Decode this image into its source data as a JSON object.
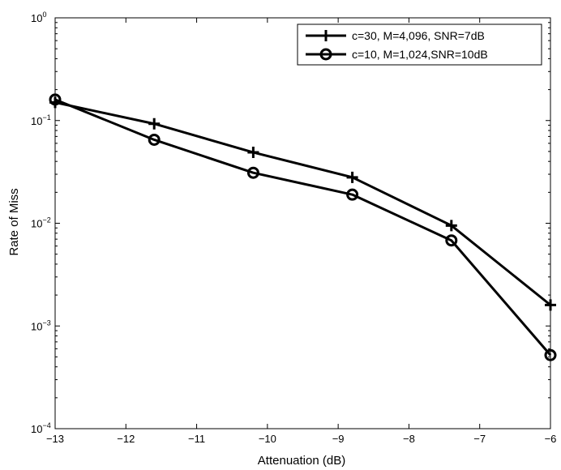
{
  "chart_data": {
    "type": "line",
    "title": "",
    "xlabel": "Attenuation (dB)",
    "ylabel": "Rate of Miss",
    "xlim": [
      -13,
      -6
    ],
    "ylim": [
      0.0001,
      1
    ],
    "yscale": "log",
    "grid": false,
    "legend_position": "top-right",
    "x_ticks": [
      -13,
      -12,
      -11,
      -10,
      -9,
      -8,
      -7,
      -6
    ],
    "x_tick_labels": [
      "−13",
      "−12",
      "−11",
      "−10",
      "−9",
      "−8",
      "−7",
      "−6"
    ],
    "y_ticks": [
      0.0001,
      0.001,
      0.01,
      0.1,
      1
    ],
    "y_tick_labels": [
      {
        "base": "10",
        "exp": "−4"
      },
      {
        "base": "10",
        "exp": "−3"
      },
      {
        "base": "10",
        "exp": "−2"
      },
      {
        "base": "10",
        "exp": "−1"
      },
      {
        "base": "10",
        "exp": "0"
      }
    ],
    "series": [
      {
        "name": "c=30, M=4,096, SNR=7dB",
        "marker": "plus",
        "color": "#000000",
        "x": [
          -13,
          -11.6,
          -10.2,
          -8.8,
          -7.4,
          -6
        ],
        "y": [
          0.15,
          0.093,
          0.049,
          0.028,
          0.0095,
          0.0016
        ]
      },
      {
        "name": "c=10, M=1,024,SNR=10dB",
        "marker": "circle",
        "color": "#000000",
        "x": [
          -13,
          -11.6,
          -10.2,
          -8.8,
          -7.4,
          -6
        ],
        "y": [
          0.16,
          0.065,
          0.031,
          0.019,
          0.0068,
          0.00052
        ]
      }
    ]
  }
}
